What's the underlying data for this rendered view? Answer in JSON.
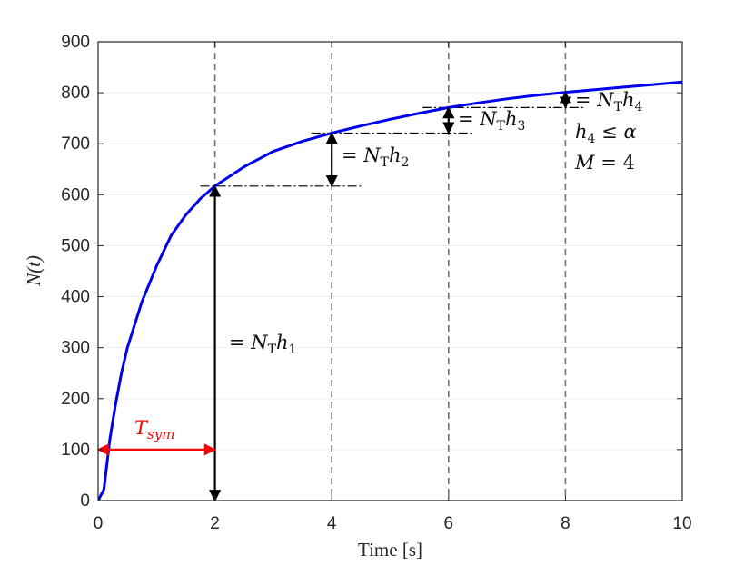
{
  "chart_data": {
    "type": "line",
    "xlabel": "Time [s]",
    "ylabel": "N(t)",
    "xlim": [
      0,
      10
    ],
    "ylim": [
      0,
      900
    ],
    "x_ticks": [
      "0",
      "2",
      "4",
      "6",
      "8",
      "10"
    ],
    "y_ticks": [
      "0",
      "100",
      "200",
      "300",
      "400",
      "500",
      "600",
      "700",
      "800",
      "900"
    ],
    "grid": "horizontal",
    "vertical_dashed_lines_x": [
      2,
      4,
      6,
      8
    ],
    "series": [
      {
        "color": "#0000ee",
        "x": [
          0,
          0.1,
          0.2,
          0.3,
          0.4,
          0.5,
          0.75,
          1,
          1.25,
          1.5,
          1.75,
          2,
          2.5,
          3,
          3.5,
          4,
          4.5,
          5,
          5.5,
          6,
          6.5,
          7,
          7.5,
          8,
          8.5,
          9,
          9.5,
          10
        ],
        "y": [
          0,
          22,
          120,
          190,
          250,
          300,
          390,
          460,
          520,
          560,
          592,
          617,
          655,
          685,
          705,
          721,
          735,
          748,
          760,
          771,
          780,
          788,
          795,
          801,
          806,
          811,
          816,
          821
        ]
      }
    ],
    "annotations": {
      "t_sym": {
        "label_main": "T",
        "label_sub": "sym",
        "color": "#ff0000",
        "x_from": 0,
        "x_to": 2,
        "y": 100
      },
      "h1": {
        "lhs": "=",
        "n": "N",
        "sub": "T",
        "h": "h",
        "idx": "1",
        "x": 2,
        "y_from": 617,
        "y_to": 0
      },
      "h2": {
        "lhs": "=",
        "n": "N",
        "sub": "T",
        "h": "h",
        "idx": "2",
        "x": 4,
        "y_from": 617,
        "y_to": 721
      },
      "h3": {
        "lhs": "=",
        "n": "N",
        "sub": "T",
        "h": "h",
        "idx": "3",
        "x": 6,
        "y_from": 721,
        "y_to": 771
      },
      "h4": {
        "lhs": "=",
        "n": "N",
        "sub": "T",
        "h": "h",
        "idx": "4",
        "x": 8,
        "y_from": 771,
        "y_to": 801
      },
      "condition": {
        "h": "h",
        "idx": "4",
        "op": "≤",
        "alpha": "α"
      },
      "m_value": {
        "m": "M",
        "eq": "=",
        "val": "4"
      }
    }
  }
}
